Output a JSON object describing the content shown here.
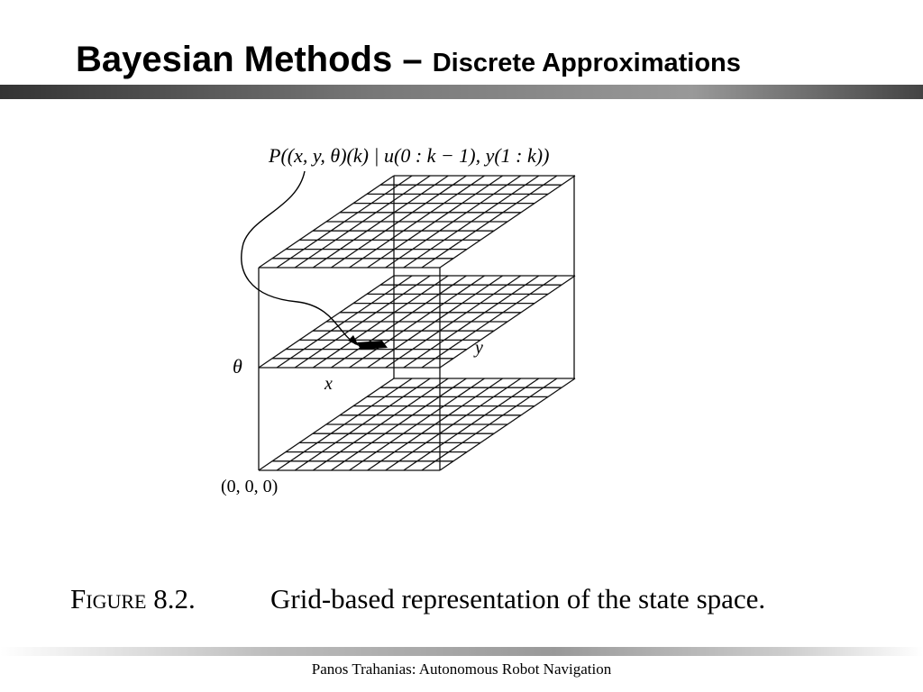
{
  "header": {
    "title": "Bayesian Methods –",
    "subtitle": "Discrete Approximations"
  },
  "figure": {
    "formula": "P((x, y, θ)(k) | u(0 : k − 1), y(1 : k))",
    "labels": {
      "theta": "θ",
      "x": "x",
      "y": "y",
      "origin": "(0, 0, 0)"
    },
    "caption_number": "Figure 8.2.",
    "caption_text": "Grid-based representation of the state space."
  },
  "footer": {
    "text": "Panos Trahanias: Autonomous Robot Navigation"
  }
}
